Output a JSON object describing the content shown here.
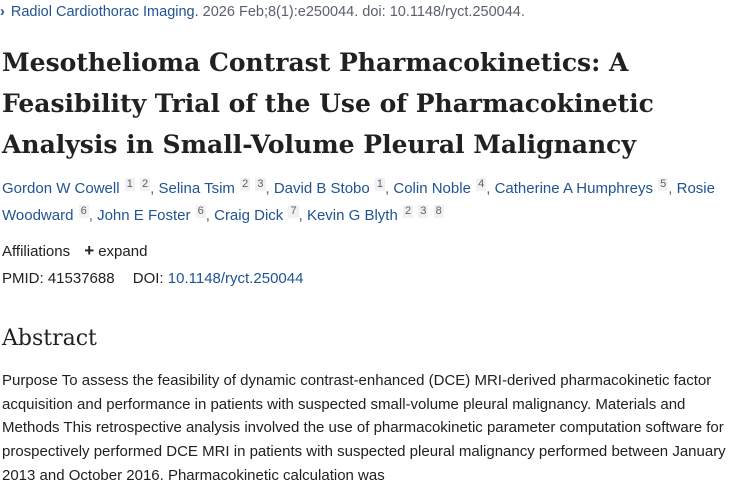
{
  "citation": {
    "journal": "Radiol Cardiothorac Imaging.",
    "details": "2026 Feb;8(1):e250044. doi: 10.1148/ryct.250044."
  },
  "title": "Mesothelioma Contrast Pharmacokinetics: A Feasibility Trial of the Use of Pharmacokinetic Analysis in Small-Volume Pleural Malignancy",
  "authors": [
    {
      "name": "Gordon W Cowell",
      "affs": [
        "1",
        "2"
      ]
    },
    {
      "name": "Selina Tsim",
      "affs": [
        "2",
        "3"
      ]
    },
    {
      "name": "David B Stobo",
      "affs": [
        "1"
      ]
    },
    {
      "name": "Colin Noble",
      "affs": [
        "4"
      ]
    },
    {
      "name": "Catherine A Humphreys",
      "affs": [
        "5"
      ]
    },
    {
      "name": "Rosie Woodward",
      "affs": [
        "6"
      ]
    },
    {
      "name": "John E Foster",
      "affs": [
        "6"
      ]
    },
    {
      "name": "Craig Dick",
      "affs": [
        "7"
      ]
    },
    {
      "name": "Kevin G Blyth",
      "affs": [
        "2",
        "3",
        "8"
      ]
    }
  ],
  "affiliations": {
    "label": "Affiliations",
    "expand_label": "expand",
    "expand_icon": "+"
  },
  "ids": {
    "pmid_label": "PMID:",
    "pmid": "41537688",
    "doi_label": "DOI:",
    "doi": "10.1148/ryct.250044"
  },
  "abstract": {
    "heading": "Abstract",
    "text": "Purpose To assess the feasibility of dynamic contrast-enhanced (DCE) MRI-derived pharmacokinetic factor acquisition and performance in patients with suspected small-volume pleural malignancy. Materials and Methods This retrospective analysis involved the use of pharmacokinetic parameter computation software for prospectively performed DCE MRI in patients with suspected pleural malignancy performed between January 2013 and October 2016. Pharmacokinetic calculation was"
  },
  "icons": {
    "citation_chevron": "chevron-right-icon",
    "affiliations_expand": "plus-icon"
  },
  "colors": {
    "link": "#205493",
    "muted": "#5b616b",
    "text": "#212121"
  }
}
